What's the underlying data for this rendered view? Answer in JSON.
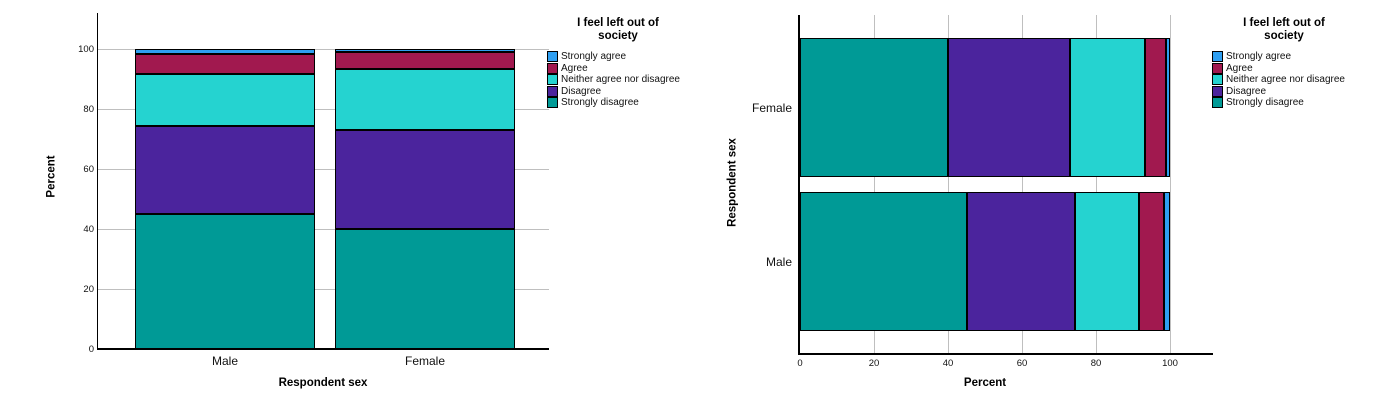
{
  "chart_data": [
    {
      "type": "bar",
      "orientation": "vertical",
      "stacked": true,
      "title": "",
      "xlabel": "Respondent sex",
      "ylabel": "Percent",
      "legend_title": "I feel left out of society",
      "legend_position": "right",
      "grid": "horizontal",
      "categories": [
        "Male",
        "Female"
      ],
      "series": [
        {
          "name": "Strongly disagree",
          "color": "#009A96",
          "values": [
            45.0,
            40.0
          ]
        },
        {
          "name": "Disagree",
          "color": "#4B249D",
          "values": [
            29.3,
            33.0
          ]
        },
        {
          "name": "Neither agree nor disagree",
          "color": "#25D3D0",
          "values": [
            17.4,
            20.3
          ]
        },
        {
          "name": "Agree",
          "color": "#A1194F",
          "values": [
            6.8,
            5.7
          ]
        },
        {
          "name": "Strongly agree",
          "color": "#2E9FF2",
          "values": [
            1.5,
            1.0
          ]
        }
      ],
      "y_ticks": [
        0,
        20,
        40,
        60,
        80,
        100
      ],
      "ylim": [
        0,
        112
      ]
    },
    {
      "type": "bar",
      "orientation": "horizontal",
      "stacked": true,
      "title": "",
      "xlabel": "Percent",
      "ylabel": "Respondent sex",
      "legend_title": "I feel left out of society",
      "legend_position": "right",
      "grid": "vertical",
      "categories": [
        "Female",
        "Male"
      ],
      "series": [
        {
          "name": "Strongly disagree",
          "color": "#009A96",
          "values": [
            40.0,
            45.0
          ]
        },
        {
          "name": "Disagree",
          "color": "#4B249D",
          "values": [
            33.0,
            29.3
          ]
        },
        {
          "name": "Neither agree nor disagree",
          "color": "#25D3D0",
          "values": [
            20.3,
            17.4
          ]
        },
        {
          "name": "Agree",
          "color": "#A1194F",
          "values": [
            5.7,
            6.8
          ]
        },
        {
          "name": "Strongly agree",
          "color": "#2E9FF2",
          "values": [
            1.0,
            1.5
          ]
        }
      ],
      "x_ticks": [
        0,
        20,
        40,
        60,
        80,
        100
      ],
      "xlim": [
        0,
        112
      ]
    }
  ],
  "legend": {
    "title": "I feel left out of society",
    "entries_top_to_bottom": [
      "Strongly agree",
      "Agree",
      "Neither agree nor disagree",
      "Disagree",
      "Strongly disagree"
    ]
  },
  "colors": {
    "strongly_agree": "#2E9FF2",
    "agree": "#A1194F",
    "neither_agree_nor_disagree": "#25D3D0",
    "disagree": "#4B249D",
    "strongly_disagree": "#009A96",
    "gridline": "#bfbfbf",
    "axis": "#000000"
  }
}
